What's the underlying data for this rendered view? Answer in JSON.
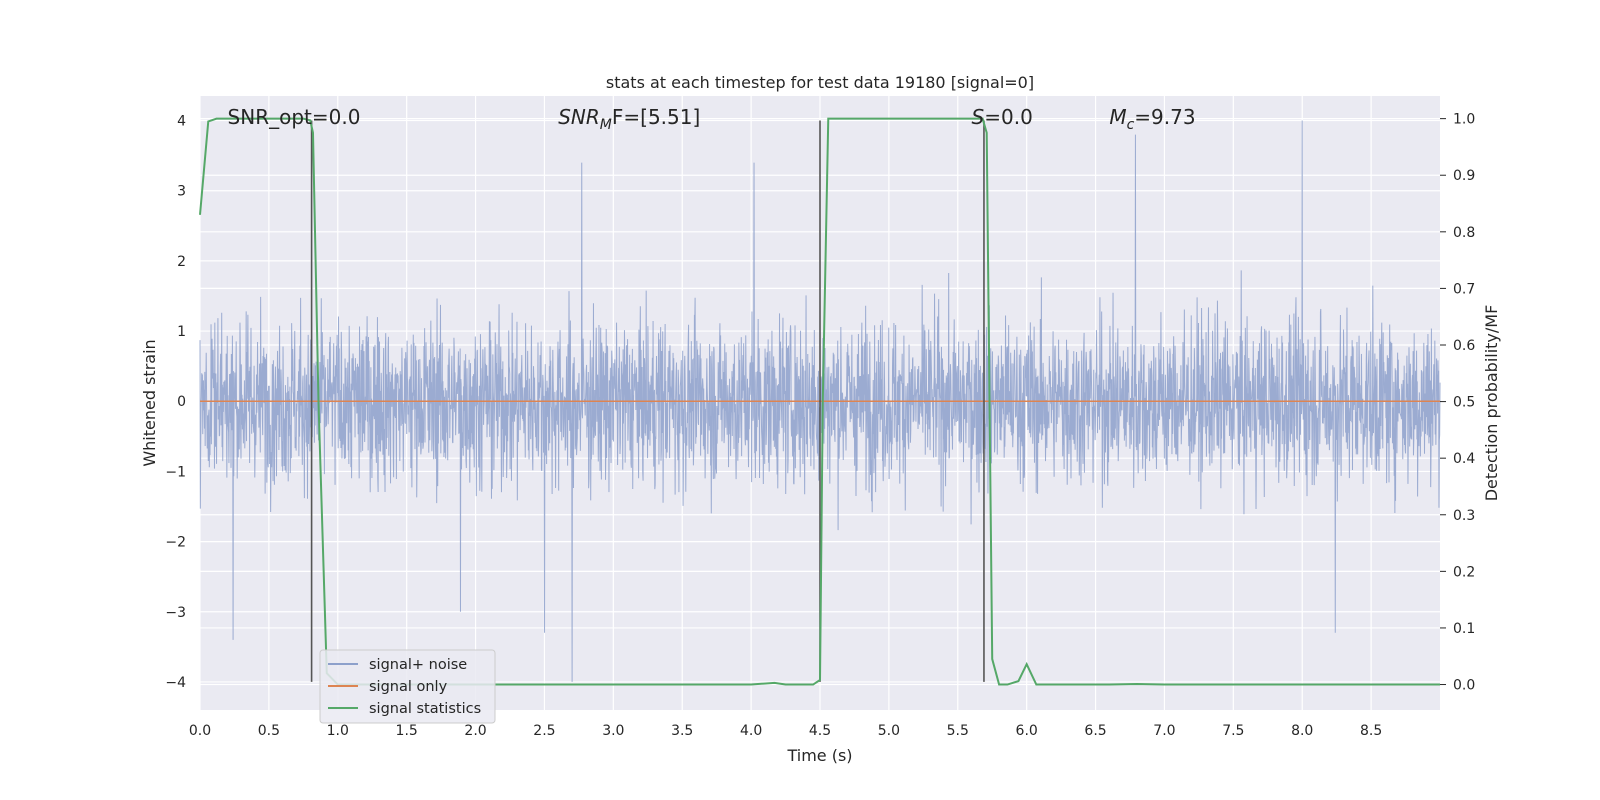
{
  "chart_data": {
    "type": "line",
    "title": "stats at each timestep for test data 19180 [signal=0]",
    "xlabel": "Time (s)",
    "ylabel": "Whitened strain",
    "y2label": "Detection probability/MF",
    "xlim": [
      0.0,
      9.0
    ],
    "ylim": [
      -4.4,
      4.35
    ],
    "y2lim": [
      -0.045,
      1.04
    ],
    "x_ticks": [
      "0.0",
      "0.5",
      "1.0",
      "1.5",
      "2.0",
      "2.5",
      "3.0",
      "3.5",
      "4.0",
      "4.5",
      "5.0",
      "5.5",
      "6.0",
      "6.5",
      "7.0",
      "7.5",
      "8.0",
      "8.5"
    ],
    "y_ticks": [
      "4",
      "3",
      "2",
      "1",
      "0",
      "−1",
      "−2",
      "−3",
      "−4"
    ],
    "y2_ticks": [
      "1.0",
      "0.9",
      "0.8",
      "0.7",
      "0.6",
      "0.5",
      "0.4",
      "0.3",
      "0.2",
      "0.1",
      "0.0"
    ],
    "grid": true,
    "legend_position": "lower-left",
    "annotations": {
      "snr_opt": {
        "x": 0.2,
        "text": "SNR_opt=0.0"
      },
      "snr_mf": {
        "x": 2.6,
        "main": "SNR",
        "sub": "M",
        "rest": "F=[5.51]"
      },
      "s_val": {
        "x": 5.6,
        "main": "S",
        "rest": "=0.0"
      },
      "mc_val": {
        "x": 6.6,
        "main": "M",
        "sub": "c",
        "rest": "=9.73"
      }
    },
    "series": [
      {
        "name": "signal+ noise",
        "color": "#8da0cb",
        "kind": "noise",
        "noise_envelope": {
          "typical_min": -1.6,
          "typical_max": 1.6,
          "peak_abs": 4.0
        },
        "notable_peaks": [
          {
            "x": 0.24,
            "y": -3.4
          },
          {
            "x": 1.89,
            "y": -3.0
          },
          {
            "x": 2.5,
            "y": -3.3
          },
          {
            "x": 2.7,
            "y": -4.0
          },
          {
            "x": 2.77,
            "y": 3.4
          },
          {
            "x": 4.02,
            "y": 3.4
          },
          {
            "x": 6.79,
            "y": 3.8
          },
          {
            "x": 8.0,
            "y": 4.0
          },
          {
            "x": 8.24,
            "y": -3.3
          }
        ]
      },
      {
        "name": "signal only",
        "color": "#dd8452",
        "kind": "line",
        "x": [
          0.0,
          9.0
        ],
        "y": [
          0.0,
          0.0
        ]
      },
      {
        "name": "signal statistics",
        "color": "#55a868",
        "kind": "line",
        "axis": "right",
        "x": [
          0.0,
          0.06,
          0.12,
          0.2,
          0.4,
          0.6,
          0.75,
          0.8,
          0.82,
          0.86,
          0.92,
          1.0,
          2.0,
          3.0,
          4.0,
          4.17,
          4.25,
          4.45,
          4.5,
          4.52,
          4.56,
          4.62,
          5.0,
          5.5,
          5.68,
          5.71,
          5.75,
          5.8,
          5.86,
          5.94,
          6.0,
          6.07,
          6.2,
          6.6,
          6.8,
          7.0,
          8.0,
          9.0
        ],
        "y": [
          0.83,
          0.995,
          1.0,
          1.0,
          1.0,
          1.0,
          1.0,
          0.997,
          0.975,
          0.5,
          0.02,
          0.0,
          0.0,
          0.0,
          0.0,
          0.003,
          0.0,
          0.0,
          0.008,
          0.5,
          1.0,
          1.0,
          1.0,
          1.0,
          1.0,
          0.975,
          0.045,
          0.0,
          0.0,
          0.006,
          0.036,
          0.0,
          0.0,
          0.0,
          0.001,
          0.0,
          0.0,
          0.0
        ]
      }
    ],
    "vertical_markers": {
      "color": "#555555",
      "lines": [
        {
          "x": 0.81,
          "y_from": -4.0,
          "y_to": 4.0
        },
        {
          "x": 4.5,
          "y_from": -4.0,
          "y_to": 4.0
        },
        {
          "x": 5.69,
          "y_from": -4.0,
          "y_to": 4.0
        }
      ]
    }
  }
}
